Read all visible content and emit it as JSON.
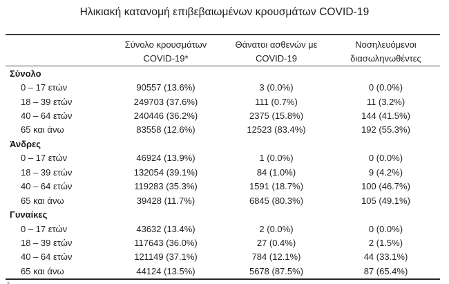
{
  "title": "Ηλικιακή κατανομή επιβεβαιωμένων κρουσμάτων COVID-19",
  "footnote_fragment": "*",
  "colors": {
    "background": "#ffffff",
    "text": "#1f1f1f",
    "rule": "#3c3c3c"
  },
  "table": {
    "column_headers": [
      [
        "Σύνολο κρουσμάτων",
        "COVID-19*"
      ],
      [
        "Θάνατοι ασθενών με",
        "COVID-19"
      ],
      [
        "Νοσηλευόμενοι",
        "διασωληνωθέντες"
      ]
    ],
    "groups": [
      {
        "label": "Σύνολο",
        "rows": [
          {
            "age": "0 – 17 ετών",
            "cases": "90557 (13.6%)",
            "deaths": "3 (0.0%)",
            "intubated": "0 (0.0%)"
          },
          {
            "age": "18 – 39 ετών",
            "cases": "249703 (37.6%)",
            "deaths": "111 (0.7%)",
            "intubated": "11 (3.2%)"
          },
          {
            "age": "40 – 64 ετών",
            "cases": "240446 (36.2%)",
            "deaths": "2375 (15.8%)",
            "intubated": "144 (41.5%)"
          },
          {
            "age": "65 και άνω",
            "cases": "83558 (12.6%)",
            "deaths": "12523 (83.4%)",
            "intubated": "192 (55.3%)"
          }
        ]
      },
      {
        "label": "Άνδρες",
        "rows": [
          {
            "age": "0 – 17 ετών",
            "cases": "46924 (13.9%)",
            "deaths": "1 (0.0%)",
            "intubated": "0 (0.0%)"
          },
          {
            "age": "18 – 39 ετών",
            "cases": "132054 (39.1%)",
            "deaths": "84 (1.0%)",
            "intubated": "9 (4.2%)"
          },
          {
            "age": "40 – 64 ετών",
            "cases": "119283 (35.3%)",
            "deaths": "1591 (18.7%)",
            "intubated": "100 (46.7%)"
          },
          {
            "age": "65 και άνω",
            "cases": "39428 (11.7%)",
            "deaths": "6845 (80.3%)",
            "intubated": "105 (49.1%)"
          }
        ]
      },
      {
        "label": "Γυναίκες",
        "rows": [
          {
            "age": "0 – 17 ετών",
            "cases": "43632 (13.4%)",
            "deaths": "2 (0.0%)",
            "intubated": "0 (0.0%)"
          },
          {
            "age": "18 – 39 ετών",
            "cases": "117643 (36.0%)",
            "deaths": "27 (0.4%)",
            "intubated": "2 (1.5%)"
          },
          {
            "age": "40 – 64 ετών",
            "cases": "121149 (37.1%)",
            "deaths": "784 (12.1%)",
            "intubated": "44 (33.1%)"
          },
          {
            "age": "65 και άνω",
            "cases": "44124 (13.5%)",
            "deaths": "5678 (87.5%)",
            "intubated": "87 (65.4%)"
          }
        ]
      }
    ]
  }
}
